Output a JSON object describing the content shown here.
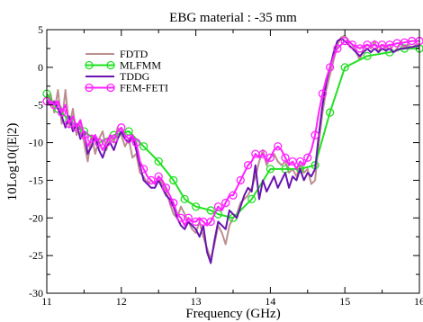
{
  "chart_data": {
    "type": "line",
    "title": "EBG material : -35 mm",
    "xlabel": "Frequency (GHz)",
    "ylabel": "10Log10(|E|2)",
    "xlim": [
      11,
      16
    ],
    "ylim": [
      -30,
      5
    ],
    "xticks": [
      11,
      12,
      13,
      14,
      15,
      16
    ],
    "yticks": [
      -30,
      -25,
      -20,
      -15,
      -10,
      -5,
      0,
      5
    ],
    "grid": false,
    "legend_position": "top-left",
    "series": [
      {
        "name": "FDTD",
        "color": "#bc8f8f",
        "marker": "none",
        "x": [
          11.0,
          11.05,
          11.1,
          11.15,
          11.2,
          11.25,
          11.3,
          11.35,
          11.4,
          11.45,
          11.5,
          11.55,
          11.6,
          11.65,
          11.7,
          11.75,
          11.8,
          11.85,
          11.9,
          11.95,
          12.0,
          12.05,
          12.1,
          12.15,
          12.2,
          12.25,
          12.3,
          12.35,
          12.4,
          12.45,
          12.5,
          12.55,
          12.6,
          12.65,
          12.7,
          12.75,
          12.8,
          12.85,
          12.9,
          12.95,
          13.0,
          13.05,
          13.1,
          13.15,
          13.2,
          13.25,
          13.3,
          13.35,
          13.4,
          13.45,
          13.5,
          13.55,
          13.6,
          13.65,
          13.7,
          13.75,
          13.8,
          13.85,
          13.9,
          13.95,
          14.0,
          14.05,
          14.1,
          14.15,
          14.2,
          14.25,
          14.3,
          14.35,
          14.4,
          14.45,
          14.5,
          14.55,
          14.6,
          14.65,
          14.7,
          14.75,
          14.8,
          14.85,
          14.9,
          14.95,
          15.0,
          15.05,
          15.1,
          15.15,
          15.2,
          15.25,
          15.3,
          15.35,
          15.4,
          15.45,
          15.5,
          15.55,
          15.6,
          15.65,
          15.7,
          15.75,
          15.8,
          15.85,
          15.9,
          15.95,
          16.0
        ],
        "y": [
          -5.0,
          -3.5,
          -6.0,
          -3.0,
          -7.5,
          -3.0,
          -8.0,
          -5.5,
          -9.0,
          -7.0,
          -10.0,
          -12.5,
          -9.0,
          -11.5,
          -9.5,
          -8.5,
          -11.0,
          -9.0,
          -10.0,
          -8.0,
          -9.0,
          -10.5,
          -9.5,
          -12.0,
          -11.5,
          -14.0,
          -14.5,
          -15.5,
          -15.0,
          -15.5,
          -14.5,
          -15.5,
          -16.5,
          -18.0,
          -19.5,
          -20.0,
          -18.5,
          -19.5,
          -20.5,
          -21.5,
          -22.0,
          -20.5,
          -22.5,
          -24.0,
          -25.5,
          -23.5,
          -21.0,
          -22.0,
          -23.5,
          -21.0,
          -20.0,
          -19.5,
          -18.0,
          -17.5,
          -17.0,
          -16.0,
          -14.5,
          -12.5,
          -11.0,
          -13.0,
          -12.0,
          -11.5,
          -12.5,
          -13.0,
          -12.5,
          -14.0,
          -13.5,
          -14.5,
          -13.0,
          -14.0,
          -13.5,
          -15.5,
          -15.0,
          -10.0,
          -6.0,
          -3.0,
          -1.0,
          1.0,
          3.0,
          4.0,
          4.2,
          3.5,
          3.0,
          2.0,
          1.0,
          2.5,
          3.0,
          2.5,
          3.5,
          2.0,
          3.0,
          2.5,
          3.0,
          2.0,
          2.5,
          3.5,
          2.5,
          3.0,
          2.5,
          3.0,
          3.0
        ]
      },
      {
        "name": "MLFMM",
        "color": "#22e022",
        "marker": "circle",
        "x": [
          11.0,
          11.15,
          11.3,
          11.5,
          11.7,
          11.9,
          12.1,
          12.3,
          12.5,
          12.7,
          12.85,
          13.0,
          13.2,
          13.3,
          13.5,
          13.75,
          14.0,
          14.2,
          14.4,
          14.6,
          14.8,
          15.0,
          15.3,
          15.6,
          15.8,
          16.0
        ],
        "y": [
          -3.5,
          -5.5,
          -7.0,
          -8.5,
          -10.0,
          -9.0,
          -8.5,
          -10.5,
          -12.5,
          -15.0,
          -17.5,
          -18.5,
          -19.0,
          -19.5,
          -20.0,
          -17.5,
          -13.5,
          -13.5,
          -13.5,
          -13.0,
          -6.0,
          0.0,
          1.5,
          2.0,
          2.5,
          2.5
        ]
      },
      {
        "name": "TDDG",
        "color": "#6a14b0",
        "marker": "none",
        "x": [
          11.0,
          11.05,
          11.1,
          11.15,
          11.2,
          11.25,
          11.3,
          11.35,
          11.4,
          11.45,
          11.5,
          11.55,
          11.6,
          11.65,
          11.7,
          11.75,
          11.8,
          11.85,
          11.9,
          11.95,
          12.0,
          12.05,
          12.1,
          12.15,
          12.2,
          12.25,
          12.3,
          12.35,
          12.4,
          12.45,
          12.5,
          12.55,
          12.6,
          12.65,
          12.7,
          12.75,
          12.8,
          12.85,
          12.9,
          12.95,
          13.0,
          13.05,
          13.1,
          13.15,
          13.2,
          13.25,
          13.3,
          13.35,
          13.4,
          13.45,
          13.5,
          13.55,
          13.6,
          13.65,
          13.7,
          13.75,
          13.8,
          13.85,
          13.9,
          13.95,
          14.0,
          14.05,
          14.1,
          14.15,
          14.2,
          14.25,
          14.3,
          14.35,
          14.4,
          14.45,
          14.5,
          14.55,
          14.6,
          14.65,
          14.7,
          14.75,
          14.8,
          14.85,
          14.9,
          14.95,
          15.0,
          15.05,
          15.1,
          15.15,
          15.2,
          15.25,
          15.3,
          15.35,
          15.4,
          15.45,
          15.5,
          15.55,
          15.6,
          15.65,
          15.7,
          15.75,
          15.8,
          15.85,
          15.9,
          15.95,
          16.0
        ],
        "y": [
          -4.5,
          -5.0,
          -4.5,
          -5.5,
          -6.5,
          -8.0,
          -6.5,
          -8.5,
          -7.5,
          -9.5,
          -8.5,
          -11.5,
          -10.5,
          -9.0,
          -11.0,
          -12.0,
          -10.5,
          -10.0,
          -11.0,
          -9.5,
          -8.5,
          -9.5,
          -10.0,
          -9.0,
          -11.0,
          -13.0,
          -15.0,
          -15.5,
          -16.0,
          -16.0,
          -15.0,
          -16.0,
          -17.0,
          -17.5,
          -18.5,
          -20.0,
          -21.0,
          -21.5,
          -20.5,
          -21.0,
          -21.5,
          -22.5,
          -21.0,
          -24.5,
          -26.0,
          -23.0,
          -20.5,
          -21.0,
          -21.5,
          -19.0,
          -19.5,
          -20.0,
          -18.5,
          -17.0,
          -16.0,
          -16.5,
          -13.0,
          -17.5,
          -15.0,
          -16.5,
          -15.5,
          -14.5,
          -16.0,
          -15.0,
          -14.0,
          -16.0,
          -14.5,
          -15.0,
          -13.5,
          -15.0,
          -14.0,
          -14.5,
          -13.5,
          -9.0,
          -5.0,
          -2.0,
          0.0,
          2.0,
          3.5,
          3.8,
          3.5,
          3.0,
          2.5,
          2.0,
          1.5,
          2.0,
          2.5,
          2.0,
          2.5,
          2.0,
          2.5,
          2.2,
          2.5,
          2.0,
          2.3,
          2.5,
          2.5,
          2.6,
          2.7,
          2.8,
          2.8
        ]
      },
      {
        "name": "FEM-FETI",
        "color": "#ff22ff",
        "marker": "circle",
        "x": [
          11.0,
          11.05,
          11.1,
          11.15,
          11.2,
          11.25,
          11.3,
          11.35,
          11.4,
          11.45,
          11.5,
          11.55,
          11.6,
          11.65,
          11.7,
          11.75,
          11.8,
          11.85,
          11.9,
          11.95,
          12.0,
          12.05,
          12.1,
          12.15,
          12.2,
          12.25,
          12.3,
          12.35,
          12.4,
          12.45,
          12.5,
          12.55,
          12.6,
          12.65,
          12.7,
          12.75,
          12.8,
          12.85,
          12.9,
          12.95,
          13.0,
          13.05,
          13.1,
          13.15,
          13.2,
          13.25,
          13.3,
          13.35,
          13.4,
          13.45,
          13.5,
          13.55,
          13.6,
          13.65,
          13.7,
          13.75,
          13.8,
          13.85,
          13.9,
          13.95,
          14.0,
          14.05,
          14.1,
          14.15,
          14.2,
          14.25,
          14.3,
          14.35,
          14.4,
          14.45,
          14.5,
          14.55,
          14.6,
          14.65,
          14.7,
          14.75,
          14.8,
          14.85,
          14.9,
          14.95,
          15.0,
          15.05,
          15.1,
          15.15,
          15.2,
          15.25,
          15.3,
          15.35,
          15.4,
          15.45,
          15.5,
          15.55,
          15.6,
          15.65,
          15.7,
          15.75,
          15.8,
          15.85,
          15.9,
          15.95,
          16.0
        ],
        "y": [
          -4.5,
          -4.5,
          -5.0,
          -4.5,
          -6.0,
          -5.0,
          -7.5,
          -6.5,
          -8.0,
          -7.0,
          -9.0,
          -10.5,
          -9.5,
          -9.0,
          -10.0,
          -11.0,
          -10.0,
          -9.0,
          -9.5,
          -8.5,
          -8.0,
          -9.0,
          -9.5,
          -9.0,
          -10.0,
          -12.5,
          -13.5,
          -14.5,
          -15.0,
          -15.5,
          -14.5,
          -15.0,
          -16.0,
          -17.0,
          -18.0,
          -19.5,
          -20.0,
          -21.0,
          -20.0,
          -20.5,
          -20.5,
          -20.0,
          -20.5,
          -21.0,
          -20.5,
          -19.5,
          -18.5,
          -19.0,
          -18.0,
          -17.0,
          -17.0,
          -16.0,
          -15.0,
          -14.0,
          -13.0,
          -12.5,
          -11.5,
          -12.0,
          -11.5,
          -12.5,
          -12.0,
          -11.0,
          -10.5,
          -11.0,
          -12.0,
          -13.0,
          -12.5,
          -13.5,
          -12.5,
          -13.0,
          -12.0,
          -11.0,
          -9.0,
          -6.0,
          -3.5,
          -1.5,
          0.0,
          1.5,
          2.5,
          3.0,
          3.5,
          3.5,
          3.0,
          2.8,
          2.5,
          2.8,
          3.0,
          2.8,
          3.0,
          2.7,
          3.0,
          2.8,
          3.0,
          3.0,
          3.2,
          3.2,
          3.3,
          3.4,
          3.5,
          3.5,
          3.5
        ]
      }
    ]
  }
}
